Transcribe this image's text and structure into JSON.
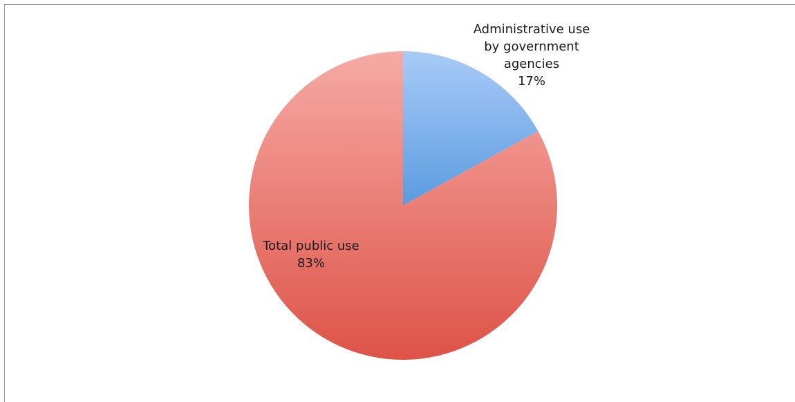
{
  "chart_data": {
    "type": "pie",
    "title": "",
    "start_angle": "12 o'clock",
    "direction": "clockwise",
    "slices": [
      {
        "label_lines": [
          "Administrative use",
          "by government",
          "agencies"
        ],
        "value": 17,
        "value_label": "17%",
        "color_top": "#a9cbf7",
        "color_bottom": "#5b9be0"
      },
      {
        "label_lines": [
          "Total public use"
        ],
        "value": 83,
        "value_label": "83%",
        "color_top": "#f6aaa5",
        "color_bottom": "#dd5347"
      }
    ]
  },
  "colors": {
    "frame_border": "#9a9a9a",
    "background": "#ffffff"
  }
}
